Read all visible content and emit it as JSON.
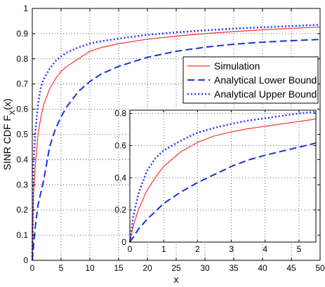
{
  "chart_data": [
    {
      "type": "line",
      "title": "",
      "xlabel": "x",
      "ylabel": "SINR CDF F",
      "ylabel_subscript": "X",
      "ylabel_suffix": "(x)",
      "xlim": [
        0,
        50
      ],
      "ylim": [
        0,
        1
      ],
      "xticks": [
        0,
        5,
        10,
        15,
        20,
        25,
        30,
        35,
        40,
        45,
        50
      ],
      "yticks": [
        0,
        0.1,
        0.2,
        0.3,
        0.4,
        0.5,
        0.6,
        0.7,
        0.8,
        0.9,
        1
      ],
      "grid": true,
      "legend_position": "right-center",
      "series": [
        {
          "name": "Simulation",
          "color": "#ff3333",
          "style": "solid",
          "x": [
            0,
            0.2,
            0.5,
            1,
            1.5,
            2,
            3,
            4,
            5,
            6,
            8,
            10,
            12,
            15,
            20,
            25,
            30,
            35,
            40,
            45,
            50
          ],
          "y": [
            0,
            0.25,
            0.37,
            0.5,
            0.57,
            0.62,
            0.68,
            0.72,
            0.75,
            0.77,
            0.8,
            0.83,
            0.845,
            0.86,
            0.878,
            0.89,
            0.9,
            0.908,
            0.915,
            0.921,
            0.926
          ]
        },
        {
          "name": "Analytical Lower Bound",
          "color": "#1a33dd",
          "style": "dashed",
          "x": [
            0,
            0.5,
            1,
            2,
            3,
            4,
            5,
            6,
            8,
            10,
            12,
            15,
            20,
            25,
            30,
            35,
            40,
            45,
            50
          ],
          "y": [
            0,
            0.13,
            0.22,
            0.32,
            0.45,
            0.52,
            0.57,
            0.61,
            0.67,
            0.71,
            0.74,
            0.77,
            0.806,
            0.83,
            0.846,
            0.858,
            0.866,
            0.872,
            0.877
          ]
        },
        {
          "name": "Analytical Upper Bound",
          "color": "#3333ff",
          "style": "dotted",
          "x": [
            0,
            0.2,
            0.5,
            1,
            1.5,
            2,
            3,
            4,
            5,
            6,
            8,
            10,
            12,
            15,
            20,
            25,
            30,
            35,
            40,
            45,
            50
          ],
          "y": [
            0,
            0.38,
            0.5,
            0.62,
            0.69,
            0.72,
            0.76,
            0.79,
            0.81,
            0.825,
            0.845,
            0.86,
            0.87,
            0.88,
            0.895,
            0.905,
            0.913,
            0.92,
            0.925,
            0.93,
            0.935
          ]
        }
      ]
    },
    {
      "type": "line",
      "title": "",
      "xlim": [
        0,
        5.5
      ],
      "ylim": [
        0,
        0.82
      ],
      "xticks": [
        0,
        1,
        2,
        3,
        4,
        5
      ],
      "yticks": [
        0,
        0.2,
        0.4,
        0.6,
        0.8
      ],
      "grid": true,
      "series": [
        {
          "name": "Simulation",
          "color": "#ff3333",
          "style": "solid",
          "x": [
            0,
            0.1,
            0.25,
            0.5,
            0.75,
            1,
            1.5,
            2,
            2.5,
            3,
            3.5,
            4,
            4.5,
            5,
            5.5
          ],
          "y": [
            0,
            0.1,
            0.2,
            0.32,
            0.4,
            0.47,
            0.56,
            0.62,
            0.66,
            0.685,
            0.705,
            0.72,
            0.735,
            0.75,
            0.765
          ]
        },
        {
          "name": "Analytical Lower Bound",
          "color": "#1a33dd",
          "style": "dashed",
          "x": [
            0,
            0.1,
            0.25,
            0.5,
            0.75,
            1,
            1.5,
            2,
            2.5,
            3,
            3.5,
            4,
            4.5,
            5,
            5.5
          ],
          "y": [
            0,
            0.03,
            0.08,
            0.14,
            0.19,
            0.24,
            0.31,
            0.37,
            0.42,
            0.47,
            0.51,
            0.54,
            0.565,
            0.59,
            0.615
          ]
        },
        {
          "name": "Analytical Upper Bound",
          "color": "#3333ff",
          "style": "dotted",
          "x": [
            0,
            0.1,
            0.25,
            0.5,
            0.75,
            1,
            1.5,
            2,
            2.5,
            3,
            3.5,
            4,
            4.5,
            5,
            5.5
          ],
          "y": [
            0,
            0.16,
            0.3,
            0.44,
            0.52,
            0.57,
            0.63,
            0.68,
            0.71,
            0.735,
            0.755,
            0.77,
            0.785,
            0.8,
            0.81
          ]
        }
      ]
    }
  ]
}
